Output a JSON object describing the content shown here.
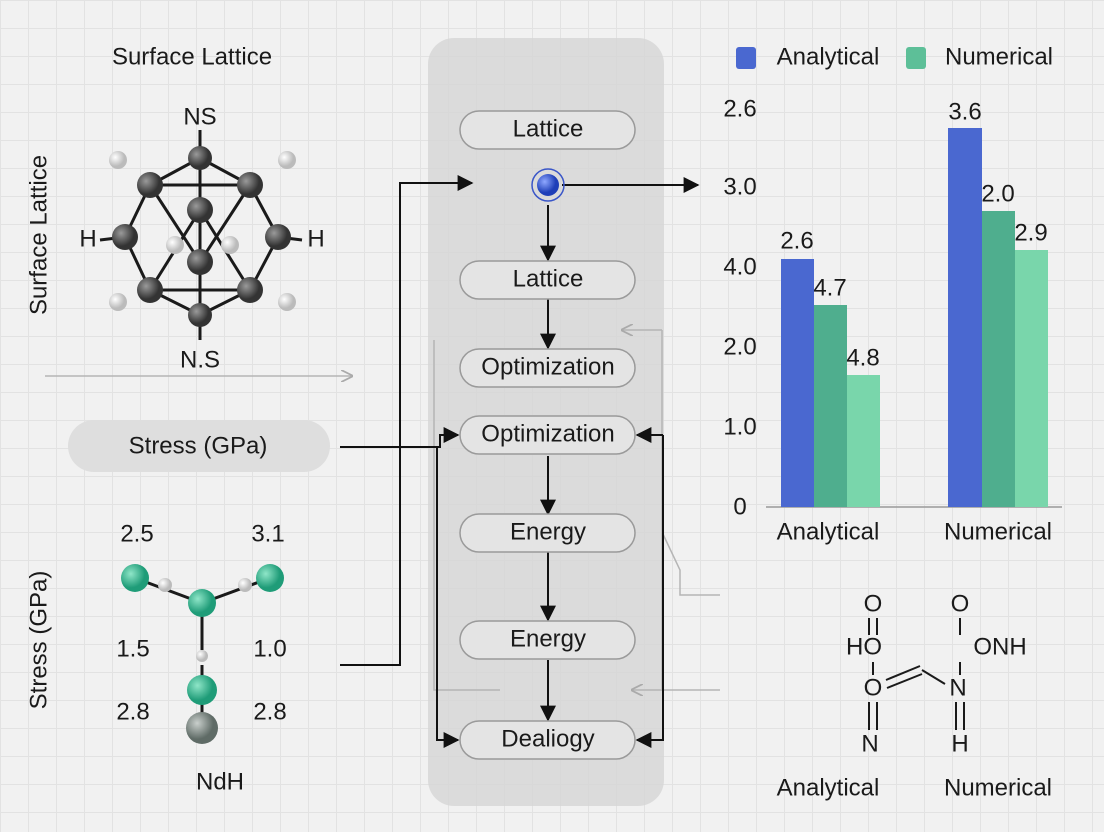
{
  "left_panel": {
    "title": "Surface Lattice",
    "side_label": "Surface Lattice",
    "molecule_labels": [
      "NS",
      "H",
      "H",
      "N.S"
    ],
    "stress_button": "Stress (GPa)",
    "side_label_2": "Stress (GPa)",
    "stress_values": [
      "2.5",
      "3.1",
      "1.5",
      "1.0",
      "2.8",
      "2.8"
    ],
    "bottom_label": "NdH"
  },
  "flow": {
    "nodes": [
      "Lattice",
      "Lattice",
      "Optimization",
      "Optimization",
      "Energy",
      "Energy",
      "Dealiogy"
    ]
  },
  "chart": {
    "legend": [
      {
        "name": "Analytical",
        "color": "#4a68d0"
      },
      {
        "name": "Numerical",
        "color": "#5dbf98"
      }
    ],
    "axis_labels": [
      "2.6",
      "3.0",
      "4.0",
      "2.0",
      "1.0",
      "0"
    ],
    "groups": [
      {
        "name": "Analytical",
        "bar_labels": [
          "2.6",
          "4.7",
          "4.8"
        ]
      },
      {
        "name": "Numerical",
        "bar_labels": [
          "3.6",
          "2.0",
          "2.9"
        ]
      }
    ]
  },
  "molecule": {
    "labels": [
      "O",
      "HO",
      "O",
      "ONH",
      "N",
      "H",
      "O",
      "N"
    ],
    "captions": [
      "Analytical",
      "Numerical"
    ]
  }
}
